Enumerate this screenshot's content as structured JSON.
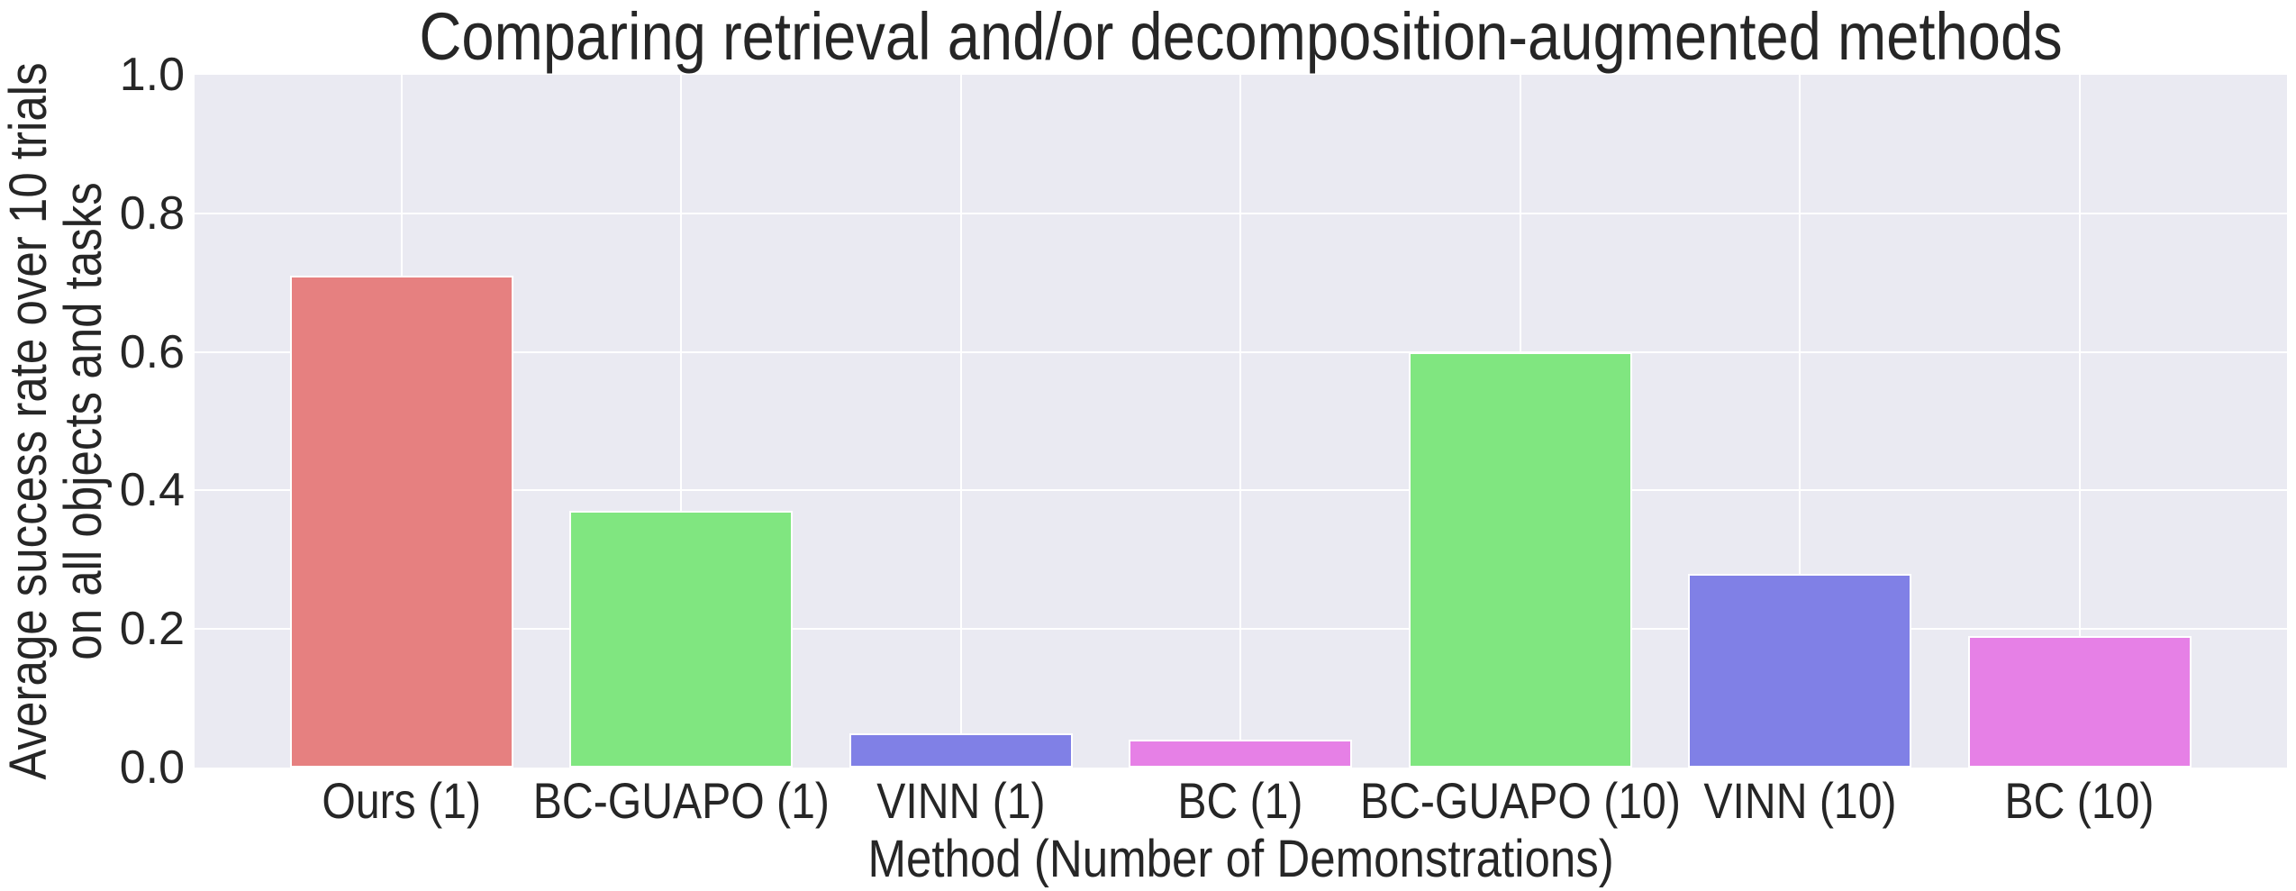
{
  "chart_data": {
    "type": "bar",
    "title": "Comparing retrieval and/or decomposition-augmented methods",
    "xlabel": "Method (Number of Demonstrations)",
    "ylabel": "Average success rate over 10 trials on all objects and tasks",
    "ylabel_lines": [
      "Average success rate over 10 trials",
      "on all objects and tasks"
    ],
    "categories": [
      "Ours (1)",
      "BC-GUAPO (1)",
      "VINN (1)",
      "BC (1)",
      "BC-GUAPO (10)",
      "VINN (10)",
      "BC (10)"
    ],
    "values": [
      0.71,
      0.37,
      0.05,
      0.04,
      0.6,
      0.28,
      0.19
    ],
    "bar_colors": [
      "#e68080",
      "#80e680",
      "#8080e6",
      "#e680e6",
      "#80e680",
      "#8080e6",
      "#e680e6"
    ],
    "yticks": [
      "1.0",
      "0.8",
      "0.6",
      "0.4",
      "0.2",
      "0.0"
    ],
    "ylim": [
      0.0,
      1.0
    ],
    "grid": true,
    "legend_position": "none",
    "plot_background": "#eaeaf2",
    "text_color": "#262626"
  }
}
